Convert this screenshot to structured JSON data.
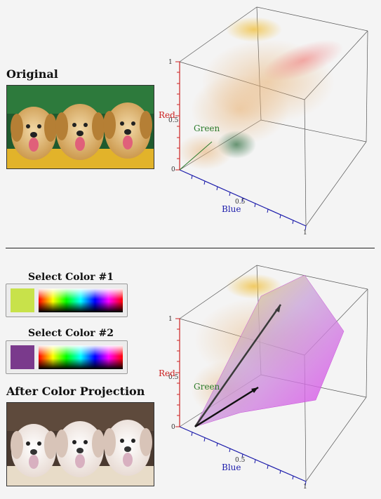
{
  "top": {
    "heading": "Original",
    "photo_alt": "three golden retriever puppies"
  },
  "bottom": {
    "picker1": {
      "label": "Select Color #1",
      "color": "#c8e24a"
    },
    "picker2": {
      "label": "Select Color #2",
      "color": "#7a3a8c"
    },
    "heading": "After Color Projection",
    "photo_alt": "three puppies after color projection"
  },
  "plot": {
    "axis_red": "Red",
    "axis_green": "Green",
    "axis_blue": "Blue",
    "tick_0": "0",
    "tick_half": "0.5",
    "tick_1": "1",
    "colors": {
      "red_axis": "#cc2222",
      "green_axis": "#2a7a2a",
      "blue_axis": "#1a1aaa"
    }
  }
}
